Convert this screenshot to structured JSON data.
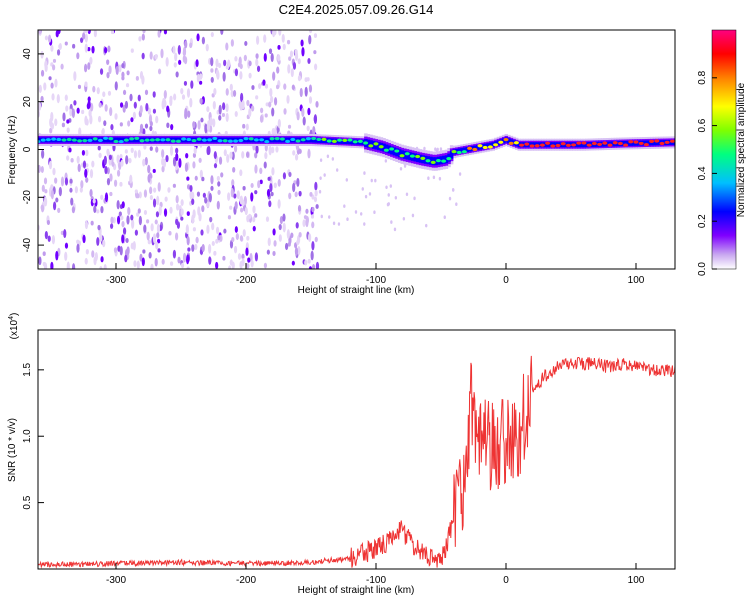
{
  "title": "C2E4.2025.057.09.26.G14",
  "chart_data": [
    {
      "type": "heatmap",
      "xlabel": "Height of straight line (km)",
      "ylabel": "Frequency (Hz)",
      "xlim": [
        -360,
        130
      ],
      "ylim": [
        -50,
        50
      ],
      "xticks": [
        -300,
        -200,
        -100,
        0,
        100
      ],
      "yticks": [
        -40,
        -20,
        0,
        20,
        40
      ],
      "grid": false,
      "colorbar": {
        "label": "Normalized spectral amplitude",
        "range": [
          0,
          1
        ],
        "ticks": [
          0.0,
          0.2,
          0.4,
          0.6,
          0.8
        ],
        "colormap": "rainbow",
        "colors": [
          "#ffffff",
          "#c9a8f0",
          "#7f00ff",
          "#0000ff",
          "#00bfff",
          "#00ff80",
          "#7fff00",
          "#ffff00",
          "#ff8000",
          "#ff0000",
          "#ff0080"
        ]
      },
      "ridge": {
        "x": [
          -360,
          -300,
          -250,
          -200,
          -150,
          -130,
          -110,
          -95,
          -80,
          -65,
          -55,
          -45,
          -40,
          -30,
          -20,
          -10,
          -5,
          0,
          5,
          10,
          30,
          60,
          90,
          130
        ],
        "y": [
          4,
          4,
          4,
          4,
          4,
          3.5,
          3,
          1,
          -2,
          -4,
          -5,
          -4,
          -1,
          0,
          1,
          2,
          3,
          4,
          3,
          2,
          2,
          2,
          2.5,
          3
        ]
      }
    },
    {
      "type": "line",
      "xlabel": "Height of straight line (km)",
      "ylabel": "SNR (10 * v/v)",
      "y_multiplier": "(x10",
      "y_multiplier_exp": "4",
      "y_multiplier_close": ")",
      "xlim": [
        -360,
        130
      ],
      "ylim": [
        0,
        1.8
      ],
      "xticks": [
        -300,
        -200,
        -100,
        0,
        100
      ],
      "yticks": [
        0.5,
        1.0,
        1.5
      ],
      "grid": false,
      "series": [
        {
          "color": "#ee3333",
          "x": [
            -360,
            -300,
            -250,
            -200,
            -150,
            -120,
            -100,
            -90,
            -80,
            -70,
            -60,
            -50,
            -45,
            -40,
            -35,
            -30,
            -27,
            -25,
            -20,
            -15,
            -10,
            -5,
            0,
            5,
            10,
            15,
            20,
            30,
            40,
            50,
            60,
            70,
            80,
            90,
            100,
            110,
            120,
            130
          ],
          "y": [
            0.03,
            0.04,
            0.05,
            0.04,
            0.05,
            0.08,
            0.15,
            0.2,
            0.3,
            0.15,
            0.1,
            0.08,
            0.2,
            0.4,
            0.5,
            0.8,
            1.3,
            1.15,
            0.95,
            0.95,
            0.9,
            0.95,
            0.95,
            0.9,
            1.0,
            1.2,
            1.35,
            1.45,
            1.52,
            1.55,
            1.55,
            1.54,
            1.52,
            1.55,
            1.52,
            1.5,
            1.5,
            1.48
          ]
        }
      ]
    }
  ]
}
